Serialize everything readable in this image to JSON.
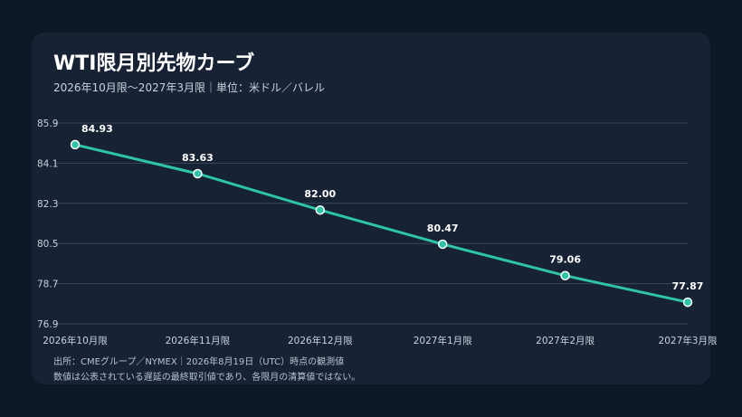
{
  "header": {
    "title": "WTI限月別先物カーブ",
    "subtitle": "2026年10月限〜2027年3月限｜単位：米ドル／バレル"
  },
  "footer": {
    "source": "出所：CMEグループ／NYMEX｜2026年8月19日（UTC）時点の観測値",
    "note": "数値は公表されている遅延の最終取引値であり、各限月の清算値ではない。"
  },
  "colors": {
    "background": "#0e1726",
    "card": "#172234",
    "line": "#2ec4a6",
    "grid": "#3a4658",
    "text": "#ffffff"
  },
  "chart_data": {
    "type": "line",
    "categories": [
      "2026年10月限",
      "2026年11月限",
      "2026年12月限",
      "2027年1月限",
      "2027年2月限",
      "2027年3月限"
    ],
    "series": [
      {
        "values": [
          84.93,
          83.63,
          82.0,
          80.47,
          79.06,
          77.87
        ],
        "labels": [
          "84.93",
          "83.63",
          "82.00",
          "80.47",
          "79.06",
          "77.87"
        ]
      }
    ],
    "yticks": [
      "85.9",
      "84.1",
      "82.3",
      "80.5",
      "78.7",
      "76.9"
    ],
    "ylim": [
      76.9,
      85.9
    ],
    "grid": true,
    "legend": "none"
  }
}
